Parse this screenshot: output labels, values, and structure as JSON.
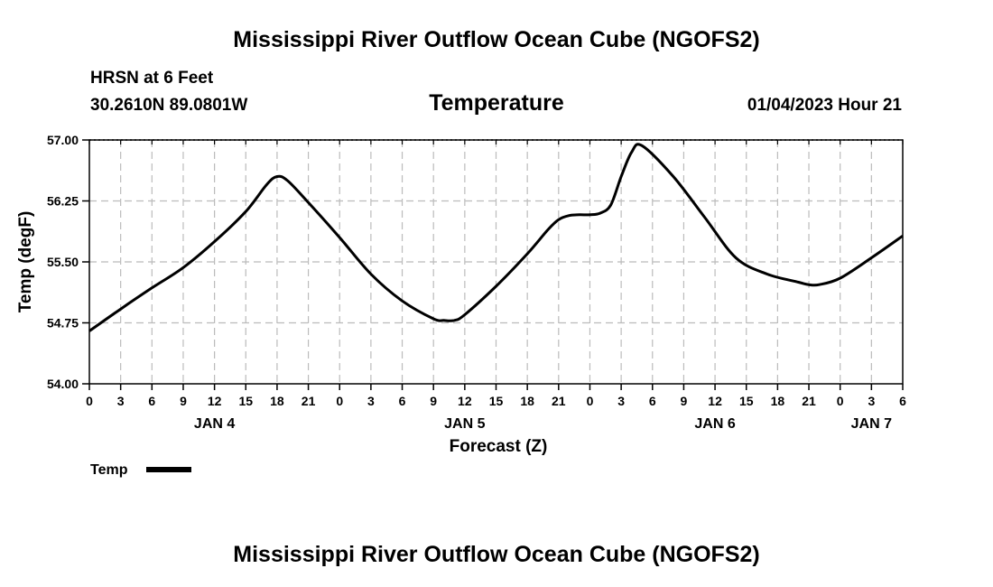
{
  "top_title": "Mississippi River Outflow Ocean Cube (NGOFS2)",
  "bottom_title": "Mississippi River Outflow Ocean Cube (NGOFS2)",
  "station": {
    "line1": "HRSN at 6 Feet",
    "line2": "30.2610N  89.0801W"
  },
  "run_time": "01/04/2023 Hour 21",
  "chart_data": {
    "type": "line",
    "title": "Temperature",
    "xlabel": "Forecast (Z)",
    "ylabel": "Temp (degF)",
    "grid": true,
    "ylim": [
      54.0,
      57.0
    ],
    "xlim": [
      0,
      78
    ],
    "y_ticks": [
      "54.00",
      "54.75",
      "55.50",
      "56.25",
      "57.00"
    ],
    "y_tick_values": [
      54.0,
      54.75,
      55.5,
      56.25,
      57.0
    ],
    "x_tick_labels": [
      "0",
      "3",
      "6",
      "9",
      "12",
      "15",
      "18",
      "21",
      "0",
      "3",
      "6",
      "9",
      "12",
      "15",
      "18",
      "21",
      "0",
      "3",
      "6",
      "9",
      "12",
      "15",
      "18",
      "21",
      "0",
      "3",
      "6"
    ],
    "day_labels": [
      {
        "label": "JAN 4",
        "hour": 12
      },
      {
        "label": "JAN 5",
        "hour": 36
      },
      {
        "label": "JAN 6",
        "hour": 60
      },
      {
        "label": "JAN 7",
        "hour": 75
      }
    ],
    "legend": {
      "label": "Temp",
      "position": "bottom-left"
    },
    "series": [
      {
        "name": "Temp",
        "x": [
          0,
          3,
          6,
          9,
          12,
          15,
          17,
          18,
          19,
          21,
          24,
          27,
          30,
          33,
          34,
          35,
          36,
          39,
          42,
          44,
          45,
          46,
          47,
          48,
          49,
          50,
          51,
          52,
          53,
          56,
          59,
          62,
          65,
          68,
          69,
          70,
          72,
          75,
          78
        ],
        "values": [
          54.65,
          54.92,
          55.18,
          55.43,
          55.75,
          56.12,
          56.45,
          56.55,
          56.5,
          56.23,
          55.8,
          55.35,
          55.02,
          54.8,
          54.78,
          54.78,
          54.85,
          55.2,
          55.6,
          55.9,
          56.02,
          56.07,
          56.08,
          56.08,
          56.1,
          56.2,
          56.55,
          56.85,
          56.93,
          56.55,
          56.05,
          55.55,
          55.35,
          55.25,
          55.22,
          55.22,
          55.3,
          55.55,
          55.82
        ]
      }
    ]
  }
}
